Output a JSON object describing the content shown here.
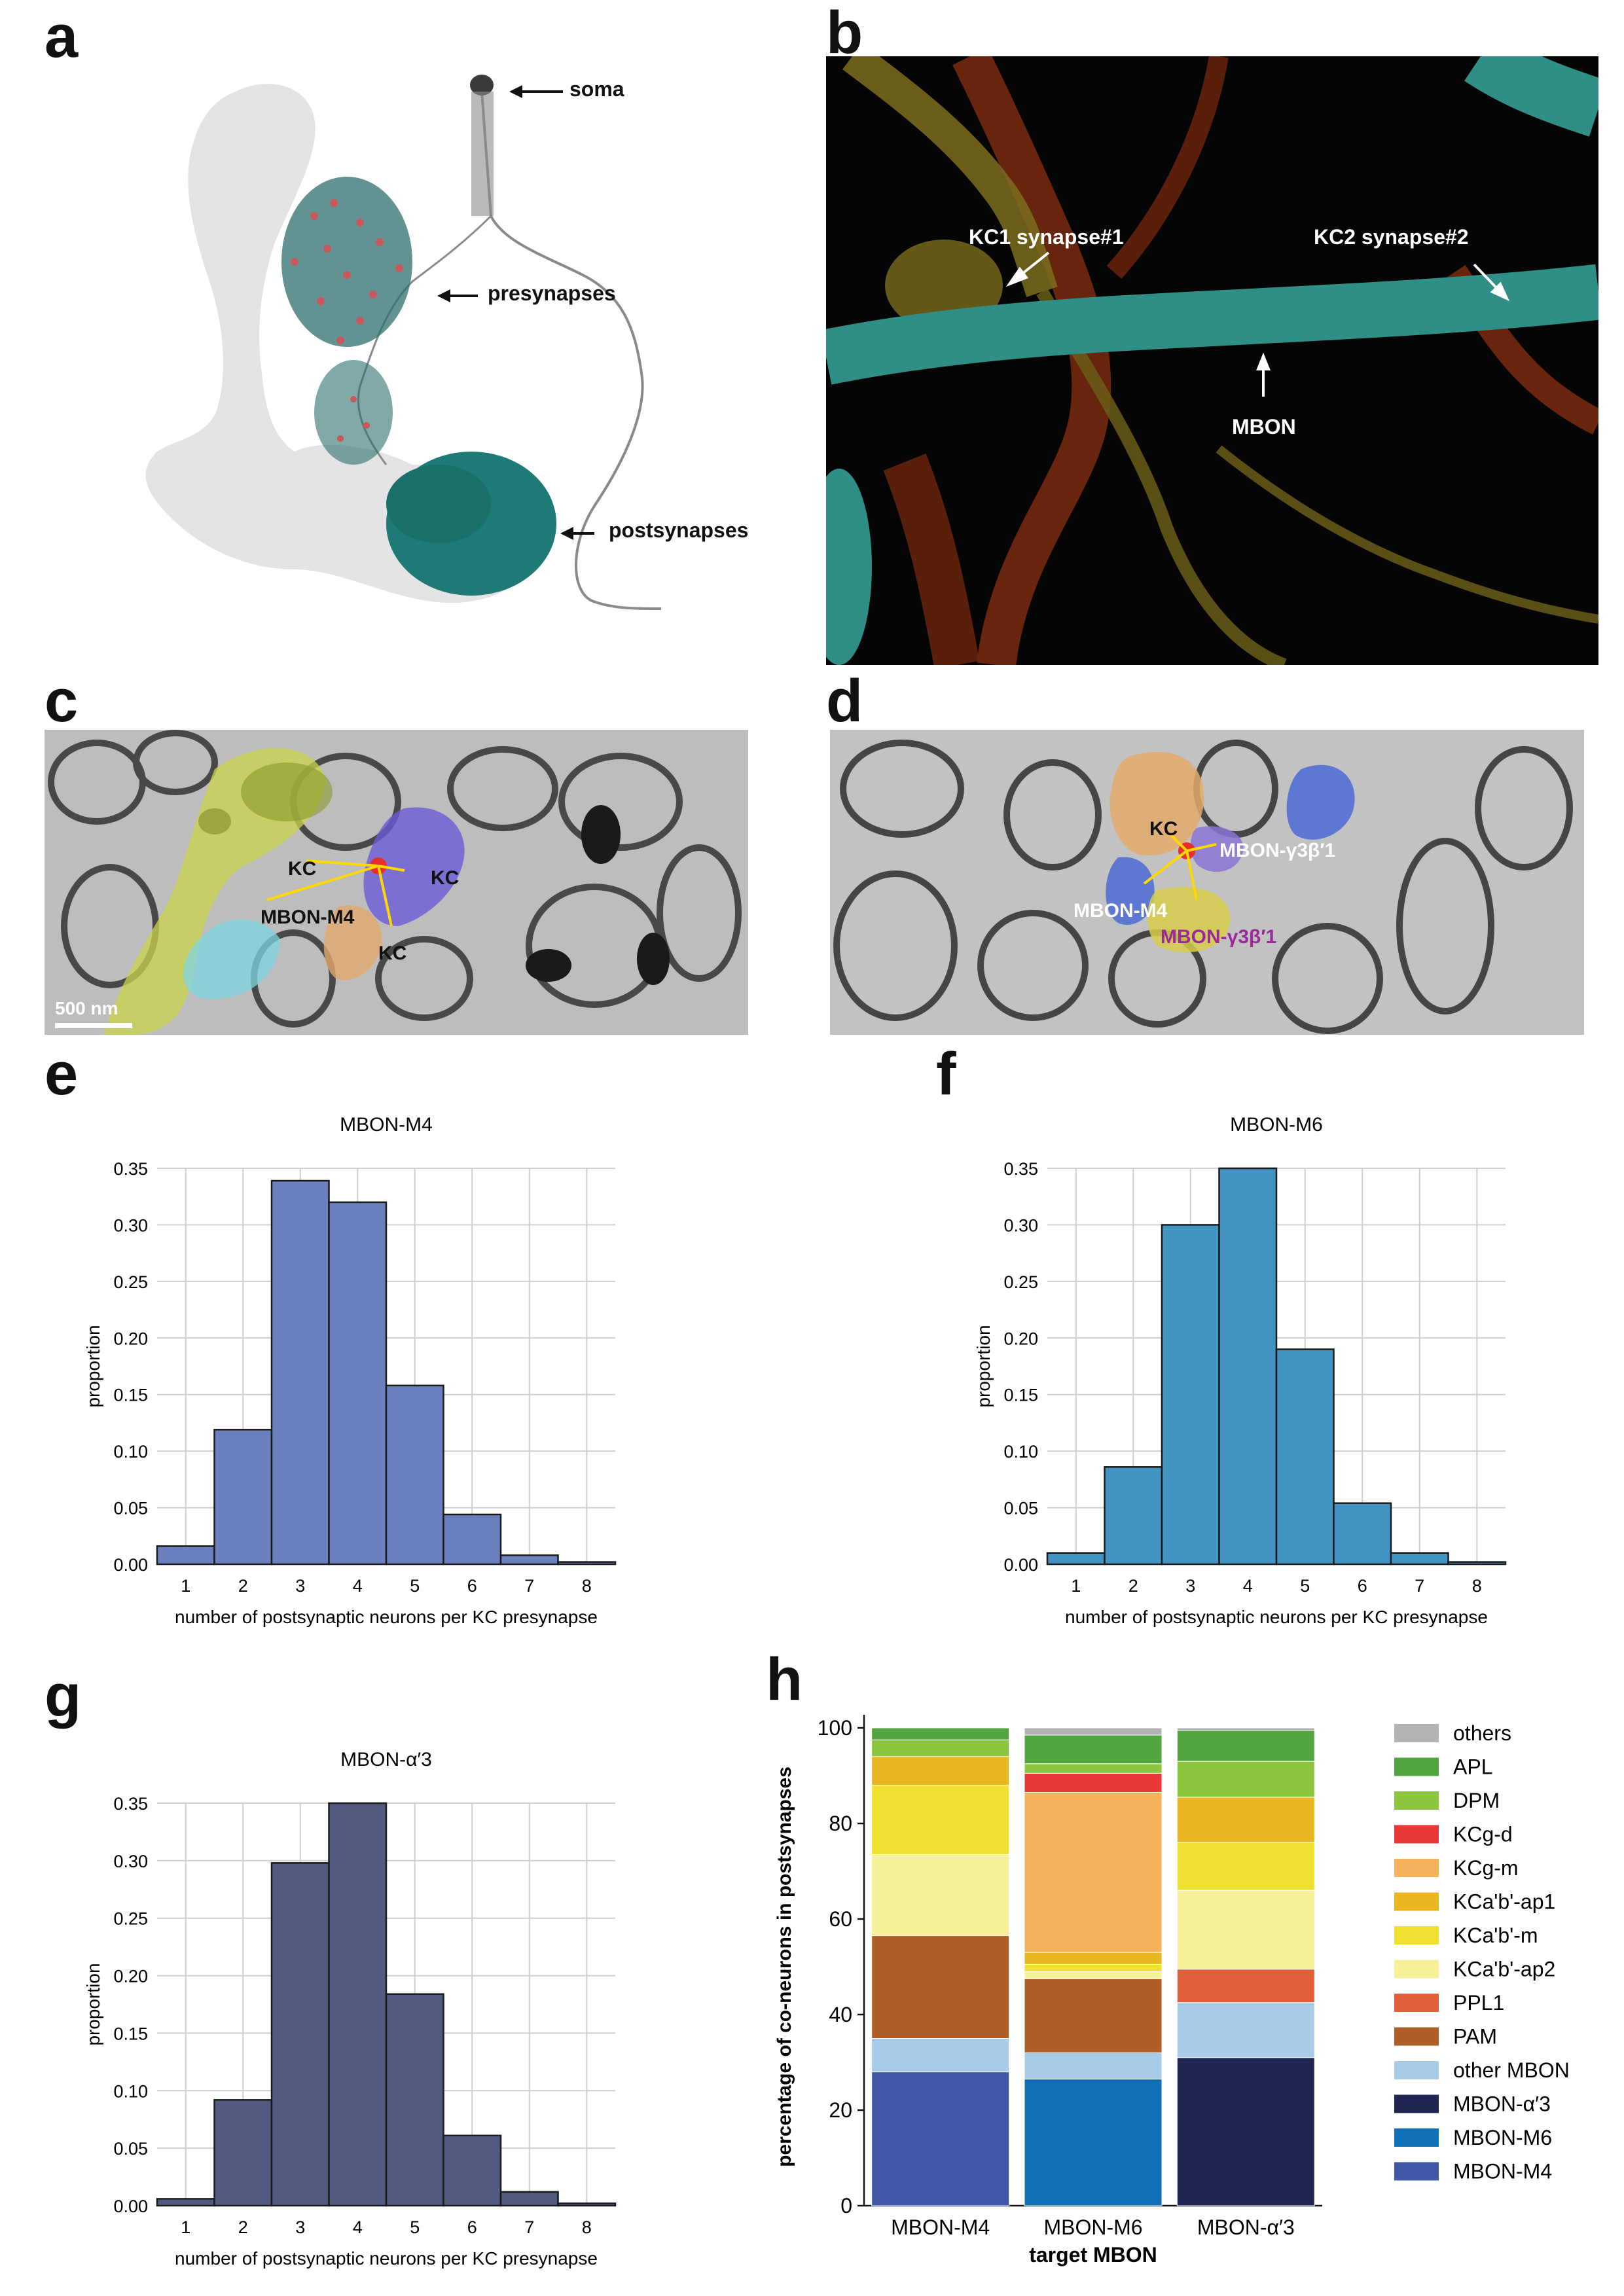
{
  "panels": {
    "a": {
      "letter": "a",
      "labels": {
        "soma": "soma",
        "presynapses": "presynapses",
        "postsynapses": "postsynapses"
      },
      "colors": {
        "brain": "#e3e3e3",
        "neuron": "#7f7f7f",
        "post": "#1e7a74",
        "pre_dot": "#c8585c"
      }
    },
    "b": {
      "letter": "b",
      "labels": {
        "kc1": "KC1 synapse#1",
        "kc2": "KC2 synapse#2",
        "mbon": "MBON"
      },
      "colors": {
        "bg": "#050505",
        "mbon": "#2f8e86",
        "kc_yellow": "#8a7a22",
        "kc_red": "#8a2d0e"
      }
    },
    "c": {
      "letter": "c",
      "labels": {
        "kc_left": "KC",
        "kc_right": "KC",
        "kc_bottom": "KC",
        "mbon": "MBON-M4",
        "scale": "500 nm"
      }
    },
    "d": {
      "letter": "d",
      "labels": {
        "kc": "KC",
        "mbon_m4": "MBON-M4",
        "mbon_g1": "MBON-γ3β′1",
        "mbon_g2": "MBON-γ3β′1"
      }
    },
    "e": {
      "letter": "e"
    },
    "f": {
      "letter": "f"
    },
    "g": {
      "letter": "g"
    },
    "h": {
      "letter": "h"
    }
  },
  "chart_data": [
    {
      "id": "e",
      "type": "bar",
      "title": "MBON-M4",
      "xlabel": "number of postsynaptic neurons per KC presynapse",
      "ylabel": "proportion",
      "categories": [
        "1",
        "2",
        "3",
        "4",
        "5",
        "6",
        "7",
        "8"
      ],
      "values": [
        0.016,
        0.119,
        0.339,
        0.32,
        0.158,
        0.044,
        0.008,
        0.002
      ],
      "ylim": [
        0,
        0.35
      ],
      "yticks": [
        "0.00",
        "0.05",
        "0.10",
        "0.15",
        "0.20",
        "0.25",
        "0.30",
        "0.35"
      ],
      "grid": true,
      "color": "#6c80bf"
    },
    {
      "id": "f",
      "type": "bar",
      "title": "MBON-M6",
      "xlabel": "number of postsynaptic neurons per KC presynapse",
      "ylabel": "proportion",
      "categories": [
        "1",
        "2",
        "3",
        "4",
        "5",
        "6",
        "7",
        "8"
      ],
      "values": [
        0.01,
        0.086,
        0.3,
        0.35,
        0.19,
        0.054,
        0.01,
        0.002
      ],
      "ylim": [
        0,
        0.35
      ],
      "yticks": [
        "0.00",
        "0.05",
        "0.10",
        "0.15",
        "0.20",
        "0.25",
        "0.30",
        "0.35"
      ],
      "grid": true,
      "color": "#4393c3"
    },
    {
      "id": "g",
      "type": "bar",
      "title": "MBON-α′3",
      "xlabel": "number of postsynaptic neurons per KC presynapse",
      "ylabel": "proportion",
      "categories": [
        "1",
        "2",
        "3",
        "4",
        "5",
        "6",
        "7",
        "8"
      ],
      "values": [
        0.006,
        0.092,
        0.298,
        0.35,
        0.184,
        0.061,
        0.012,
        0.002
      ],
      "ylim": [
        0,
        0.35
      ],
      "yticks": [
        "0.00",
        "0.05",
        "0.10",
        "0.15",
        "0.20",
        "0.25",
        "0.30",
        "0.35"
      ],
      "grid": true,
      "color": "#525a80"
    },
    {
      "id": "h",
      "type": "bar",
      "stacked": true,
      "xlabel": "target MBON",
      "ylabel": "percentage of co-neurons in postsynapses",
      "categories": [
        "MBON-M4",
        "MBON-M6",
        "MBON-α′3"
      ],
      "ylim": [
        0,
        100
      ],
      "yticks": [
        "0",
        "20",
        "40",
        "60",
        "80",
        "100"
      ],
      "legend_position": "right",
      "series": [
        {
          "name": "MBON-M4",
          "color": "#3f57a6",
          "values": [
            28,
            0,
            0
          ]
        },
        {
          "name": "MBON-M6",
          "color": "#1170b5",
          "values": [
            0,
            26.5,
            0
          ]
        },
        {
          "name": "MBON-α′3",
          "color": "#1f2550",
          "values": [
            0,
            0,
            31
          ]
        },
        {
          "name": "other MBON",
          "color": "#a8cce8",
          "values": [
            7,
            5.5,
            11.5
          ]
        },
        {
          "name": "PAM",
          "color": "#b05e27",
          "values": [
            21.5,
            15.5,
            0
          ]
        },
        {
          "name": "PPL1",
          "color": "#e0603a",
          "values": [
            0,
            0,
            7
          ]
        },
        {
          "name": "KCa'b'-ap2",
          "color": "#f6f098",
          "values": [
            17,
            1.5,
            16.5
          ]
        },
        {
          "name": "KCa'b'-m",
          "color": "#f0e032",
          "values": [
            14.5,
            1.5,
            10
          ]
        },
        {
          "name": "KCa'b'-ap1",
          "color": "#e9b622",
          "values": [
            6,
            2.5,
            9.5
          ]
        },
        {
          "name": "KCg-m",
          "color": "#f4b35a",
          "values": [
            0,
            33.5,
            0
          ]
        },
        {
          "name": "KCg-d",
          "color": "#e83838",
          "values": [
            0,
            4,
            0
          ]
        },
        {
          "name": "DPM",
          "color": "#8cc63f",
          "values": [
            3.5,
            2,
            7.5
          ]
        },
        {
          "name": "APL",
          "color": "#53a540",
          "values": [
            2.5,
            6,
            6.5
          ]
        },
        {
          "name": "others",
          "color": "#b3b3b3",
          "values": [
            0,
            1.5,
            0.5
          ]
        }
      ],
      "legend_order": [
        "others",
        "APL",
        "DPM",
        "KCg-d",
        "KCg-m",
        "KCa'b'-ap1",
        "KCa'b'-m",
        "KCa'b'-ap2",
        "PPL1",
        "PAM",
        "other MBON",
        "MBON-α′3",
        "MBON-M6",
        "MBON-M4"
      ]
    }
  ]
}
